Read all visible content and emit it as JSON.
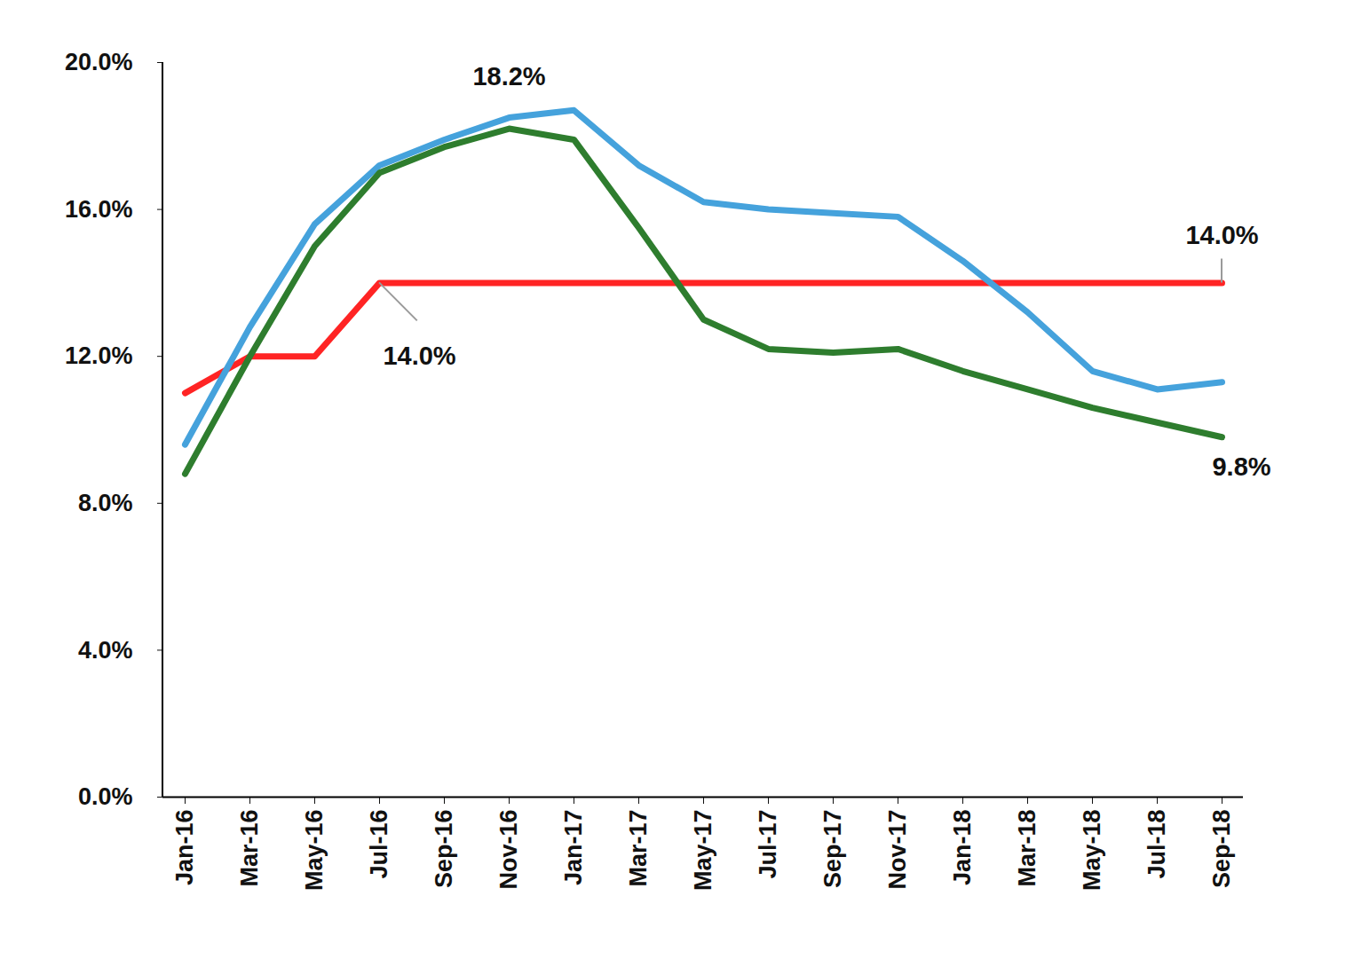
{
  "chart_data": {
    "type": "line",
    "x": [
      "Jan-16",
      "Mar-16",
      "May-16",
      "Jul-16",
      "Sep-16",
      "Nov-16",
      "Jan-17",
      "Mar-17",
      "May-17",
      "Jul-17",
      "Sep-17",
      "Nov-17",
      "Jan-18",
      "Mar-18",
      "May-18",
      "Jul-18",
      "Sep-18"
    ],
    "series": [
      {
        "color": "#ff2424",
        "values": [
          11.0,
          12.0,
          12.0,
          14.0,
          14.0,
          14.0,
          14.0,
          14.0,
          14.0,
          14.0,
          14.0,
          14.0,
          14.0,
          14.0,
          14.0,
          14.0,
          14.0
        ]
      },
      {
        "color": "#45a2dc",
        "values": [
          9.6,
          12.8,
          15.6,
          17.2,
          17.9,
          18.5,
          18.7,
          17.2,
          16.2,
          16.0,
          15.9,
          15.8,
          14.6,
          13.2,
          11.6,
          11.1,
          11.3
        ]
      },
      {
        "color": "#2e7d2e",
        "values": [
          8.8,
          12.0,
          15.0,
          17.0,
          17.7,
          18.2,
          17.9,
          15.5,
          13.0,
          12.2,
          12.1,
          12.2,
          11.6,
          11.1,
          10.6,
          10.2,
          9.8
        ]
      }
    ],
    "ylim": [
      0,
      20
    ],
    "yticks": [
      {
        "value": 0,
        "label": "0.0%"
      },
      {
        "value": 4,
        "label": "4.0%"
      },
      {
        "value": 8,
        "label": "8.0%"
      },
      {
        "value": 12,
        "label": "12.0%"
      },
      {
        "value": 16,
        "label": "16.0%"
      },
      {
        "value": 20,
        "label": "20.0%"
      }
    ],
    "grid": false,
    "annotations": [
      {
        "text": "18.2%",
        "x": "Nov-16",
        "y": 18.2
      },
      {
        "text": "14.0%",
        "x": "Jul-16",
        "y": 14.0
      },
      {
        "text": "14.0%",
        "x": "Sep-18",
        "y": 14.0
      },
      {
        "text": "9.8%",
        "x": "Sep-18",
        "y": 9.8
      }
    ]
  }
}
